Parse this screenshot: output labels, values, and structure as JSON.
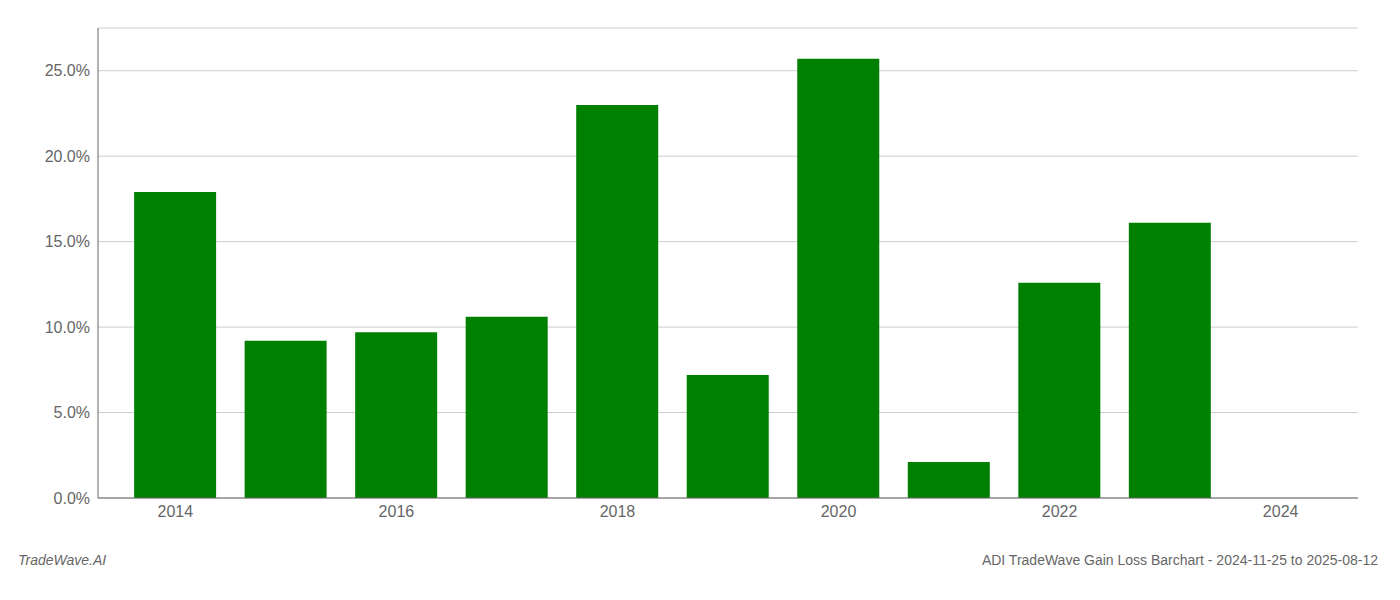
{
  "chart_data": {
    "type": "bar",
    "x": [
      2014,
      2015,
      2016,
      2017,
      2018,
      2019,
      2020,
      2021,
      2022,
      2023,
      2024
    ],
    "values": [
      17.9,
      9.2,
      9.7,
      10.6,
      23.0,
      7.2,
      25.7,
      2.1,
      12.6,
      16.1,
      null
    ],
    "color": "#008000",
    "xlim": [
      2013.3,
      2024.7
    ],
    "xticks": [
      2014,
      2016,
      2018,
      2020,
      2022,
      2024
    ],
    "ylim": [
      0,
      27.5
    ],
    "yticks": [
      {
        "value": 0.0,
        "label": "0.0%"
      },
      {
        "value": 5.0,
        "label": "5.0%"
      },
      {
        "value": 10.0,
        "label": "10.0%"
      },
      {
        "value": 15.0,
        "label": "15.0%"
      },
      {
        "value": 20.0,
        "label": "20.0%"
      },
      {
        "value": 25.0,
        "label": "25.0%"
      }
    ],
    "grid": true,
    "annotations": [
      "TradeWave.AI",
      "ADI TradeWave Gain Loss Barchart - 2024-11-25 to 2025-08-12"
    ]
  }
}
